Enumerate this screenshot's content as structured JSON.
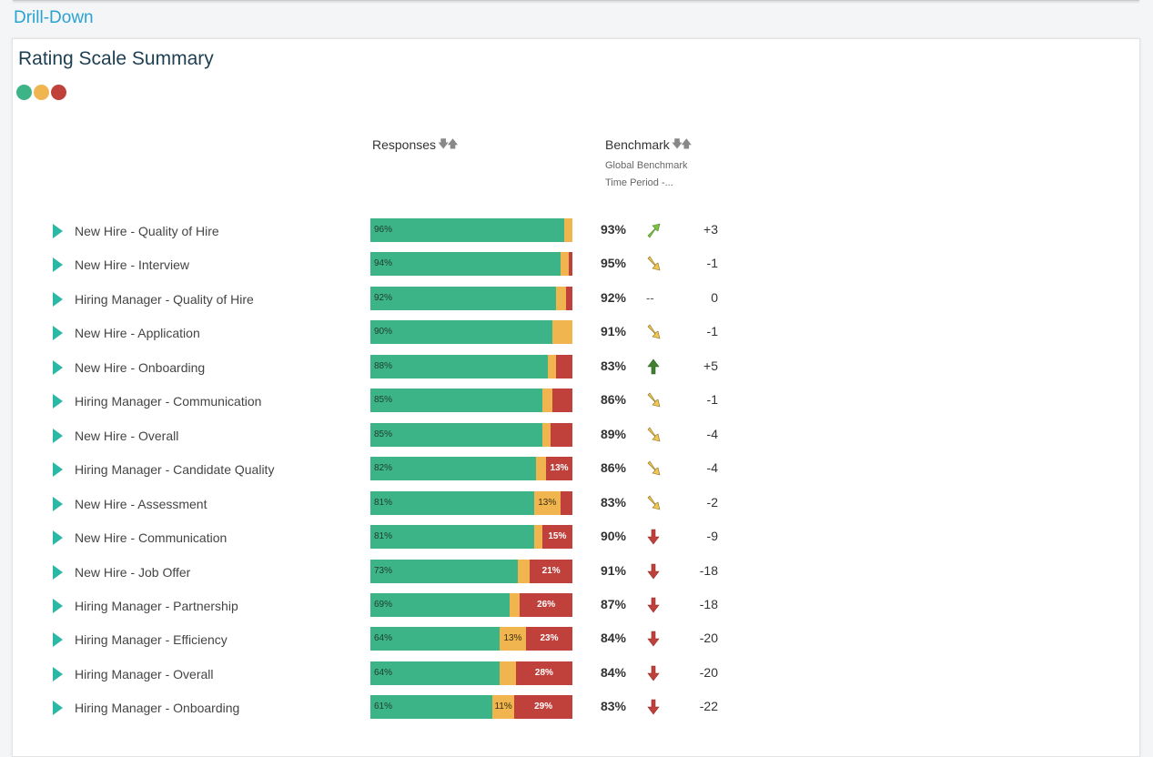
{
  "page_title": "Drill-Down",
  "card": {
    "title": "Rating Scale Summary",
    "legend_colors": [
      "#3cb488",
      "#f0b54f",
      "#c0413b"
    ],
    "columns": {
      "responses": "Responses",
      "benchmark": "Benchmark",
      "benchmark_sub1": "Global Benchmark",
      "benchmark_sub2": "Time Period -..."
    }
  },
  "rows": [
    {
      "label": "New Hire - Quality of Hire",
      "green": 96,
      "yellow": 4,
      "red": 0,
      "green_label": "96%",
      "yellow_label": "",
      "red_label": "",
      "benchmark": "93%",
      "trend": "up-right",
      "delta": "+3"
    },
    {
      "label": "New Hire - Interview",
      "green": 94,
      "yellow": 4,
      "red": 2,
      "green_label": "94%",
      "yellow_label": "",
      "red_label": "",
      "benchmark": "95%",
      "trend": "down-right",
      "delta": "-1"
    },
    {
      "label": "Hiring Manager - Quality of Hire",
      "green": 92,
      "yellow": 5,
      "red": 3,
      "green_label": "92%",
      "yellow_label": "",
      "red_label": "",
      "benchmark": "92%",
      "trend": "none",
      "trend_text": "--",
      "delta": "0"
    },
    {
      "label": "New Hire - Application",
      "green": 90,
      "yellow": 10,
      "red": 0,
      "green_label": "90%",
      "yellow_label": "",
      "red_label": "",
      "benchmark": "91%",
      "trend": "down-right",
      "delta": "-1"
    },
    {
      "label": "New Hire - Onboarding",
      "green": 88,
      "yellow": 4,
      "red": 8,
      "green_label": "88%",
      "yellow_label": "",
      "red_label": "",
      "benchmark": "83%",
      "trend": "up",
      "delta": "+5"
    },
    {
      "label": "Hiring Manager - Communication",
      "green": 85,
      "yellow": 5,
      "red": 10,
      "green_label": "85%",
      "yellow_label": "",
      "red_label": "",
      "benchmark": "86%",
      "trend": "down-right",
      "delta": "-1"
    },
    {
      "label": "New Hire - Overall",
      "green": 85,
      "yellow": 4,
      "red": 11,
      "green_label": "85%",
      "yellow_label": "",
      "red_label": "",
      "benchmark": "89%",
      "trend": "down-right",
      "delta": "-4"
    },
    {
      "label": "Hiring Manager - Candidate Quality",
      "green": 82,
      "yellow": 5,
      "red": 13,
      "green_label": "82%",
      "yellow_label": "",
      "red_label": "13%",
      "benchmark": "86%",
      "trend": "down-right",
      "delta": "-4"
    },
    {
      "label": "New Hire - Assessment",
      "green": 81,
      "yellow": 13,
      "red": 6,
      "green_label": "81%",
      "yellow_label": "13%",
      "red_label": "",
      "benchmark": "83%",
      "trend": "down-right",
      "delta": "-2"
    },
    {
      "label": "New Hire - Communication",
      "green": 81,
      "yellow": 4,
      "red": 15,
      "green_label": "81%",
      "yellow_label": "",
      "red_label": "15%",
      "benchmark": "90%",
      "trend": "down",
      "delta": "-9"
    },
    {
      "label": "New Hire - Job Offer",
      "green": 73,
      "yellow": 6,
      "red": 21,
      "green_label": "73%",
      "yellow_label": "",
      "red_label": "21%",
      "benchmark": "91%",
      "trend": "down",
      "delta": "-18"
    },
    {
      "label": "Hiring Manager - Partnership",
      "green": 69,
      "yellow": 5,
      "red": 26,
      "green_label": "69%",
      "yellow_label": "",
      "red_label": "26%",
      "benchmark": "87%",
      "trend": "down",
      "delta": "-18"
    },
    {
      "label": "Hiring Manager - Efficiency",
      "green": 64,
      "yellow": 13,
      "red": 23,
      "green_label": "64%",
      "yellow_label": "13%",
      "red_label": "23%",
      "benchmark": "84%",
      "trend": "down",
      "delta": "-20"
    },
    {
      "label": "Hiring Manager - Overall",
      "green": 64,
      "yellow": 8,
      "red": 28,
      "green_label": "64%",
      "yellow_label": "",
      "red_label": "28%",
      "benchmark": "84%",
      "trend": "down",
      "delta": "-20"
    },
    {
      "label": "Hiring Manager - Onboarding",
      "green": 61,
      "yellow": 11,
      "red": 29,
      "green_label": "61%",
      "yellow_label": "11%",
      "red_label": "29%",
      "benchmark": "83%",
      "trend": "down",
      "delta": "-22"
    }
  ]
}
